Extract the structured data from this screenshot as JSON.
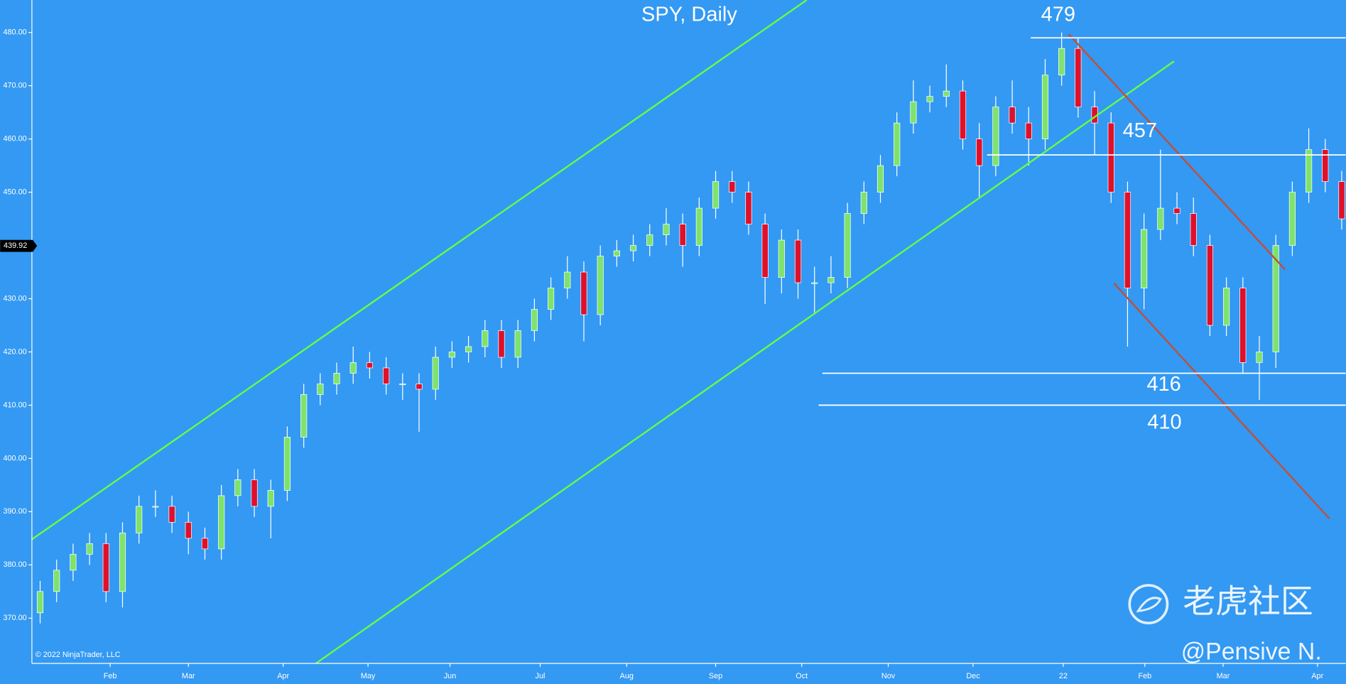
{
  "chart_data": {
    "type": "candlestick",
    "title": "SPY, Daily",
    "copyright": "© 2022 NinjaTrader, LLC",
    "watermark": "老虎社区",
    "author": "@Pensive N.",
    "background": "#3399f3",
    "up_color": "#7ee36a",
    "down_color": "#e0102a",
    "xlim": [
      0,
      319
    ],
    "ylim": [
      361.5,
      486.1
    ],
    "yticks": [
      {
        "value": 370,
        "label": "370.00"
      },
      {
        "value": 380,
        "label": "380.00"
      },
      {
        "value": 390,
        "label": "390.00"
      },
      {
        "value": 400,
        "label": "400.00"
      },
      {
        "value": 410,
        "label": "410.00"
      },
      {
        "value": 420,
        "label": "420.00"
      },
      {
        "value": 430,
        "label": "430.00"
      },
      {
        "value": 440,
        "label": "440.00"
      },
      {
        "value": 450,
        "label": "450.00"
      },
      {
        "value": 460,
        "label": "460.00"
      },
      {
        "value": 470,
        "label": "470.00"
      },
      {
        "value": 480,
        "label": "480.00"
      }
    ],
    "xticks": [
      {
        "value": 19,
        "label": "Feb"
      },
      {
        "value": 38,
        "label": "Mar"
      },
      {
        "value": 61,
        "label": "Apr"
      },
      {
        "value": 81.6,
        "label": "May"
      },
      {
        "value": 101.5,
        "label": "Jun"
      },
      {
        "value": 123.4,
        "label": "Jul"
      },
      {
        "value": 144.4,
        "label": "Aug"
      },
      {
        "value": 166,
        "label": "Sep"
      },
      {
        "value": 186.9,
        "label": "Oct"
      },
      {
        "value": 207.9,
        "label": "Nov"
      },
      {
        "value": 228.5,
        "label": "Dec"
      },
      {
        "value": 250.4,
        "label": "22"
      },
      {
        "value": 270.2,
        "label": "Feb"
      },
      {
        "value": 289.2,
        "label": "Mar"
      },
      {
        "value": 312.1,
        "label": "Apr"
      }
    ],
    "last_price": 439.92,
    "x": [
      2,
      6,
      10,
      14,
      18,
      22,
      26,
      30,
      34,
      38,
      42,
      46,
      50,
      54,
      58,
      62,
      66,
      70,
      74,
      78,
      82,
      86,
      90,
      94,
      98,
      102,
      106,
      110,
      114,
      118,
      122,
      126,
      130,
      134,
      138,
      142,
      146,
      150,
      154,
      158,
      162,
      166,
      170,
      174,
      178,
      182,
      186,
      190,
      194,
      198,
      202,
      206,
      210,
      214,
      218,
      222,
      226,
      230,
      234,
      238,
      242,
      246,
      250,
      254,
      258,
      262,
      266,
      270,
      274,
      278,
      282,
      286,
      290,
      294,
      298,
      302,
      306,
      310,
      314,
      318
    ],
    "open": [
      371,
      375,
      379,
      382,
      384,
      375,
      386,
      391,
      391,
      388,
      385,
      383,
      393,
      396,
      391,
      394,
      404,
      412,
      414,
      416,
      418,
      417,
      414,
      414,
      413,
      419,
      420,
      421,
      424,
      419,
      424,
      428,
      432,
      435,
      427,
      438,
      439,
      440,
      442,
      444,
      440,
      447,
      452,
      450,
      444,
      434,
      441,
      433,
      433,
      434,
      446,
      450,
      455,
      463,
      467,
      468,
      469,
      460,
      455,
      466,
      463,
      460,
      472,
      477,
      466,
      463,
      450,
      432,
      443,
      447,
      446,
      440,
      425,
      432,
      418,
      420,
      440,
      450,
      458,
      452
    ],
    "high": [
      377,
      381,
      384,
      386,
      386,
      388,
      393,
      394,
      393,
      390,
      387,
      395,
      398,
      398,
      396,
      406,
      414,
      416,
      418,
      421,
      420,
      419,
      416,
      416,
      421,
      422,
      423,
      426,
      426,
      426,
      430,
      434,
      438,
      437,
      440,
      441,
      442,
      444,
      447,
      446,
      449,
      454,
      454,
      452,
      446,
      443,
      443,
      436,
      438,
      448,
      452,
      457,
      465,
      471,
      470,
      474,
      471,
      463,
      468,
      471,
      466,
      475,
      480,
      479,
      469,
      465,
      452,
      446,
      458,
      450,
      449,
      442,
      434,
      434,
      423,
      442,
      452,
      462,
      460,
      454
    ],
    "low": [
      369,
      373,
      377,
      380,
      373,
      372,
      384,
      389,
      386,
      382,
      381,
      381,
      391,
      389,
      385,
      392,
      402,
      410,
      412,
      414,
      415,
      412,
      411,
      405,
      411,
      417,
      418,
      419,
      417,
      417,
      422,
      426,
      430,
      422,
      425,
      436,
      437,
      438,
      440,
      436,
      438,
      445,
      448,
      442,
      429,
      431,
      430,
      427,
      431,
      432,
      444,
      448,
      453,
      461,
      465,
      466,
      458,
      449,
      453,
      461,
      455,
      458,
      470,
      464,
      457,
      448,
      421,
      428,
      441,
      444,
      438,
      423,
      423,
      416,
      411,
      417,
      438,
      448,
      450,
      443
    ],
    "close": [
      375,
      379,
      382,
      384,
      375,
      386,
      391,
      391,
      388,
      385,
      383,
      393,
      396,
      391,
      394,
      404,
      412,
      414,
      416,
      418,
      417,
      414,
      414,
      413,
      419,
      420,
      421,
      424,
      419,
      424,
      428,
      432,
      435,
      427,
      438,
      439,
      440,
      442,
      444,
      440,
      447,
      452,
      450,
      444,
      434,
      441,
      433,
      433,
      434,
      446,
      450,
      455,
      463,
      467,
      468,
      469,
      460,
      455,
      466,
      463,
      460,
      472,
      477,
      466,
      463,
      450,
      432,
      443,
      447,
      446,
      440,
      425,
      432,
      418,
      420,
      440,
      450,
      458,
      452,
      445
    ],
    "trendlines": [
      {
        "color": "#66ff44",
        "x": [
          0,
          188.1
        ],
        "y": [
          384.8,
          486.1
        ]
      },
      {
        "color": "#66ff44",
        "x": [
          68.96,
          277.3
        ],
        "y": [
          361.5,
          474.6
        ]
      },
      {
        "color": "#c0503a",
        "x": [
          251.7,
          304.2
        ],
        "y": [
          479.7,
          435.5
        ]
      },
      {
        "color": "#c0503a",
        "x": [
          262.7,
          315
        ],
        "y": [
          432.9,
          388.7
        ]
      }
    ],
    "levels": [
      {
        "value": 479,
        "x0": 242.5
      },
      {
        "value": 457,
        "x0": 231.9
      },
      {
        "value": 416,
        "x0": 191.9
      },
      {
        "value": 410,
        "x0": 191
      }
    ]
  }
}
